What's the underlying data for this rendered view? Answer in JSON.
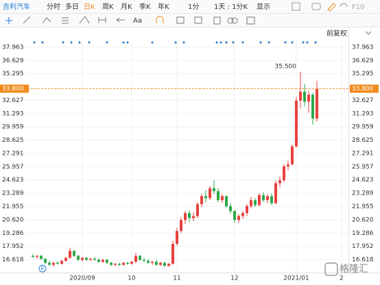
{
  "toolbar": {
    "stock": "吉利汽车",
    "tabs": [
      "分时",
      "多日",
      "日K",
      "周K",
      "月K",
      "季K",
      "年K"
    ],
    "selected": 2,
    "interval": "1分",
    "period": "1天 : 1分K",
    "display": "显示",
    "f10": "F10"
  },
  "drawing_toolbar": {
    "font": "Aa",
    "adjust": "前复权"
  },
  "watermark": "格隆汇",
  "chart_data": {
    "type": "candlestick",
    "categories": [
      null,
      null,
      null,
      null,
      null,
      null,
      null,
      null,
      null,
      null,
      null,
      null,
      "2020/09",
      null,
      null,
      null,
      null,
      null,
      null,
      null,
      null,
      null,
      null,
      null,
      "10",
      null,
      null,
      null,
      null,
      null,
      null,
      null,
      null,
      null,
      null,
      "11",
      null,
      null,
      null,
      null,
      null,
      null,
      null,
      null,
      null,
      null,
      null,
      null,
      null,
      "12",
      null,
      null,
      null,
      null,
      null,
      null,
      null,
      null,
      null,
      null,
      null,
      null,
      null,
      null,
      "2021/01",
      null,
      null,
      null,
      null,
      null,
      null,
      null,
      null,
      null,
      null,
      "2"
    ],
    "open": [
      17.0,
      16.9,
      17.0,
      16.7,
      16.3,
      16.1,
      16.3,
      16.2,
      16.5,
      16.8,
      17.5,
      17.0,
      16.6,
      16.8,
      16.6,
      16.7,
      16.6,
      16.4,
      16.6,
      16.3,
      16.1,
      16.2,
      16.1,
      16.3,
      16.2,
      16.4,
      17.0,
      16.6,
      16.5,
      16.3,
      16.4,
      16.1,
      16.3,
      16.0,
      16.2,
      18.2,
      19.5,
      20.6,
      21.3,
      20.8,
      21.0,
      22.2,
      23.0,
      22.8,
      23.8,
      23.5,
      22.6,
      23.0,
      22.0,
      21.5,
      20.6,
      21.0,
      21.3,
      22.0,
      22.6,
      22.1,
      23.1,
      22.6,
      23.0,
      22.3,
      24.3,
      24.6,
      26.0,
      26.2,
      28.0,
      32.6,
      33.5,
      32.5,
      33.2,
      30.8,
      null,
      null,
      null,
      null,
      null,
      null
    ],
    "high": [
      17.2,
      17.1,
      17.1,
      16.8,
      16.5,
      16.4,
      16.5,
      16.6,
      16.9,
      17.8,
      17.6,
      17.1,
      16.9,
      16.9,
      16.8,
      16.9,
      16.8,
      16.7,
      16.7,
      16.4,
      16.3,
      16.3,
      16.4,
      16.4,
      16.5,
      17.3,
      17.1,
      16.8,
      16.7,
      16.5,
      16.6,
      16.4,
      16.4,
      16.3,
      18.5,
      19.8,
      20.9,
      21.5,
      21.6,
      21.4,
      22.4,
      23.2,
      23.6,
      24.0,
      24.6,
      23.8,
      23.2,
      23.1,
      22.3,
      21.6,
      21.2,
      21.5,
      22.2,
      22.9,
      22.8,
      23.3,
      23.4,
      23.2,
      23.3,
      24.6,
      25.0,
      26.2,
      26.6,
      28.2,
      33.0,
      35.5,
      34.3,
      33.6,
      33.4,
      34.6,
      null,
      null,
      null,
      null,
      null,
      null
    ],
    "low": [
      16.8,
      16.7,
      16.6,
      16.2,
      16.0,
      15.9,
      16.1,
      16.1,
      16.4,
      16.7,
      16.9,
      16.5,
      16.4,
      16.5,
      16.5,
      16.5,
      16.3,
      16.3,
      16.2,
      16.0,
      16.0,
      16.0,
      16.0,
      16.1,
      16.1,
      16.3,
      16.5,
      16.4,
      16.2,
      16.1,
      16.0,
      16.0,
      15.9,
      15.9,
      16.1,
      18.0,
      19.3,
      20.2,
      20.4,
      20.5,
      20.8,
      21.9,
      22.4,
      22.6,
      23.2,
      22.4,
      22.3,
      21.8,
      21.2,
      20.3,
      20.3,
      20.7,
      21.0,
      21.8,
      21.9,
      22.0,
      22.4,
      22.3,
      22.1,
      22.2,
      23.9,
      24.4,
      25.6,
      26.1,
      27.9,
      31.8,
      32.0,
      31.4,
      30.2,
      30.5,
      null,
      null,
      null,
      null,
      null,
      null
    ],
    "close": [
      16.9,
      17.0,
      16.7,
      16.3,
      16.1,
      16.3,
      16.2,
      16.5,
      16.8,
      17.5,
      17.0,
      16.6,
      16.8,
      16.6,
      16.7,
      16.6,
      16.4,
      16.6,
      16.3,
      16.1,
      16.2,
      16.1,
      16.3,
      16.2,
      16.4,
      17.0,
      16.6,
      16.5,
      16.3,
      16.4,
      16.1,
      16.3,
      16.0,
      16.2,
      18.2,
      19.5,
      20.6,
      21.3,
      20.8,
      21.0,
      22.2,
      23.0,
      22.8,
      23.8,
      23.5,
      22.6,
      23.0,
      22.0,
      21.5,
      20.6,
      21.0,
      21.3,
      22.0,
      22.6,
      22.1,
      23.1,
      22.6,
      23.0,
      22.3,
      24.3,
      24.6,
      26.0,
      26.2,
      28.0,
      32.6,
      33.5,
      32.5,
      33.2,
      30.8,
      33.8,
      null,
      null,
      null,
      null,
      null,
      null
    ],
    "up_color": "#e8413d",
    "down_color": "#2ea84a",
    "high_label": "35.500",
    "last_price": {
      "value": 33.8,
      "label": "33.800"
    },
    "marker_label": "E",
    "ylim": [
      15.31,
      38.72
    ],
    "yticks": [
      37.963,
      36.629,
      35.295,
      32.627,
      31.293,
      29.959,
      28.625,
      27.291,
      25.957,
      24.623,
      23.289,
      21.955,
      {
        "value": 20.62,
        "label": "20.620"
      },
      19.286,
      17.952,
      16.618
    ],
    "grid": true
  }
}
